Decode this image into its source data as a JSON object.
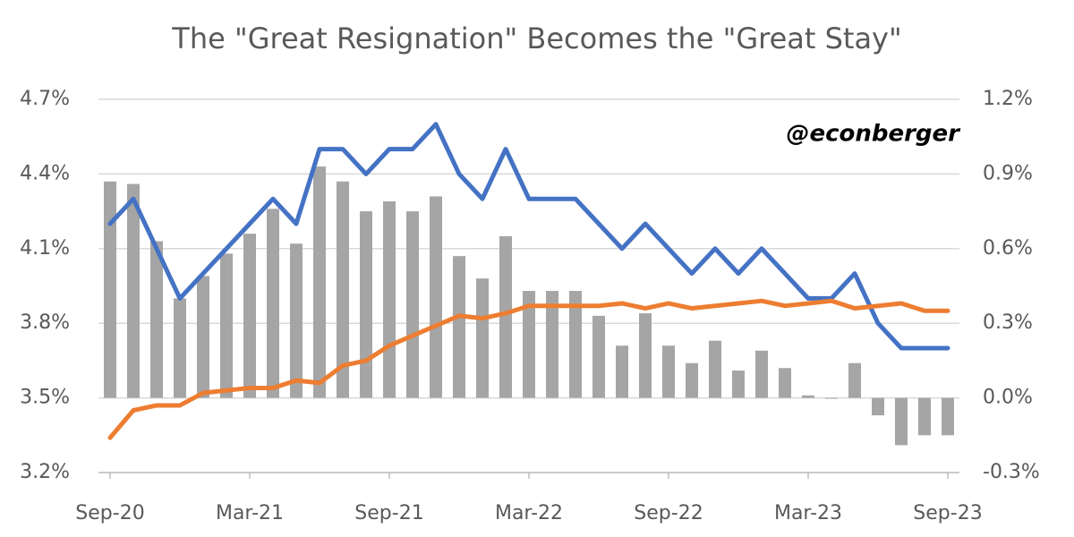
{
  "chart_data": {
    "type": "combo",
    "title": "The \"Great Resignation\" Becomes the \"Great Stay\"",
    "annotation": "@econberger",
    "categories": [
      "Sep-20",
      null,
      null,
      null,
      null,
      null,
      "Mar-21",
      null,
      null,
      null,
      null,
      null,
      "Sep-21",
      null,
      null,
      null,
      null,
      null,
      "Mar-22",
      null,
      null,
      null,
      null,
      null,
      "Sep-22",
      null,
      null,
      null,
      null,
      null,
      "Mar-23",
      null,
      null,
      null,
      null,
      null,
      "Sep-23"
    ],
    "ylim": [
      3.2,
      4.7
    ],
    "yticks": [
      {
        "value": 3.2,
        "label": "3.2%"
      },
      {
        "value": 3.5,
        "label": "3.5%"
      },
      {
        "value": 3.8,
        "label": "3.8%"
      },
      {
        "value": 4.1,
        "label": "4.1%"
      },
      {
        "value": 4.4,
        "label": "4.4%"
      },
      {
        "value": 4.7,
        "label": "4.7%"
      }
    ],
    "y2lim": [
      -0.3,
      1.2
    ],
    "y2ticks": [
      {
        "value": -0.3,
        "label": "-0.3%"
      },
      {
        "value": 0.0,
        "label": "0.0%"
      },
      {
        "value": 0.3,
        "label": "0.3%"
      },
      {
        "value": 0.6,
        "label": "0.6%"
      },
      {
        "value": 0.9,
        "label": "0.9%"
      },
      {
        "value": 1.2,
        "label": "1.2%"
      }
    ],
    "grid": true,
    "series": [
      {
        "type": "bar",
        "axis": "y2",
        "color": "#a5a5a5",
        "values": [
          0.87,
          0.86,
          0.63,
          0.4,
          0.49,
          0.58,
          0.66,
          0.76,
          0.62,
          0.93,
          0.87,
          0.75,
          0.79,
          0.75,
          0.81,
          0.57,
          0.48,
          0.65,
          0.43,
          0.43,
          0.43,
          0.33,
          0.21,
          0.34,
          0.21,
          0.14,
          0.23,
          0.11,
          0.19,
          0.12,
          0.01,
          0.0,
          0.14,
          -0.07,
          -0.19,
          -0.15,
          -0.15
        ]
      },
      {
        "type": "line",
        "color": "#4472c4",
        "values": [
          4.2,
          4.3,
          4.1,
          3.9,
          4.0,
          4.1,
          4.2,
          4.3,
          4.2,
          4.5,
          4.5,
          4.4,
          4.5,
          4.5,
          4.6,
          4.4,
          4.3,
          4.5,
          4.3,
          4.3,
          4.3,
          4.2,
          4.1,
          4.2,
          4.1,
          4.0,
          4.1,
          4.0,
          4.1,
          4.0,
          3.9,
          3.9,
          4.0,
          3.8,
          3.7,
          3.7,
          3.7
        ]
      },
      {
        "type": "line",
        "color": "#ed7d31",
        "values": [
          3.34,
          3.45,
          3.47,
          3.47,
          3.52,
          3.53,
          3.54,
          3.54,
          3.57,
          3.56,
          3.63,
          3.65,
          3.71,
          3.75,
          3.79,
          3.83,
          3.82,
          3.84,
          3.87,
          3.87,
          3.87,
          3.87,
          3.88,
          3.86,
          3.88,
          3.86,
          3.87,
          3.88,
          3.89,
          3.87,
          3.88,
          3.89,
          3.86,
          3.87,
          3.88,
          3.85,
          3.85
        ]
      }
    ]
  }
}
